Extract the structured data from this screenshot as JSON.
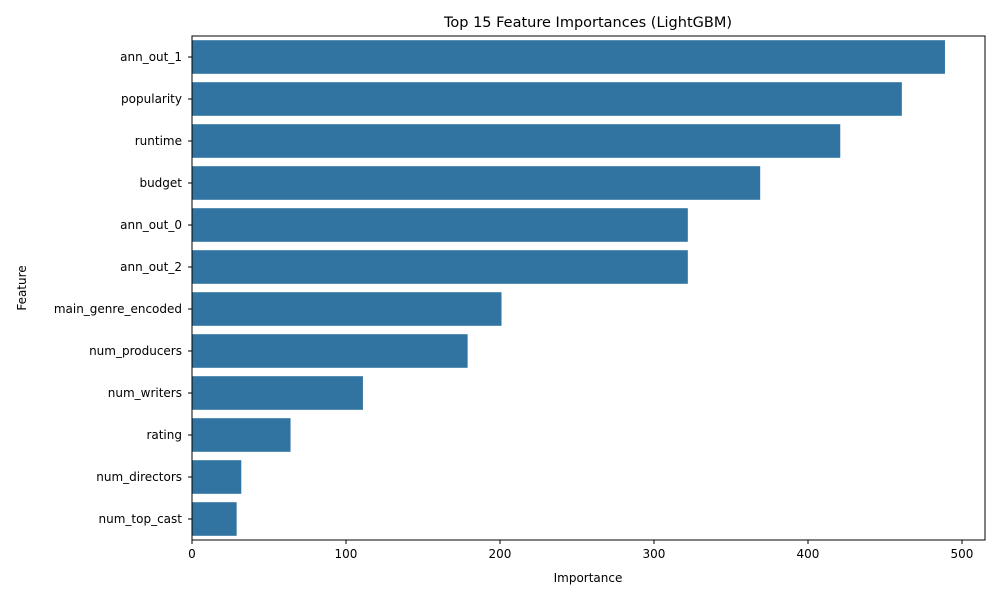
{
  "chart_data": {
    "type": "bar",
    "orientation": "horizontal",
    "title": "Top 15 Feature Importances (LightGBM)",
    "xlabel": "Importance",
    "ylabel": "Feature",
    "categories": [
      "ann_out_1",
      "popularity",
      "runtime",
      "budget",
      "ann_out_0",
      "ann_out_2",
      "main_genre_encoded",
      "num_producers",
      "num_writers",
      "rating",
      "num_directors",
      "num_top_cast"
    ],
    "values": [
      489,
      461,
      421,
      369,
      322,
      322,
      201,
      179,
      111,
      64,
      32,
      29
    ],
    "xlim": [
      0,
      515
    ],
    "xticks": [
      0,
      100,
      200,
      300,
      400,
      500
    ],
    "grid": false,
    "legend": "none",
    "bar_color": "#3274a1"
  }
}
